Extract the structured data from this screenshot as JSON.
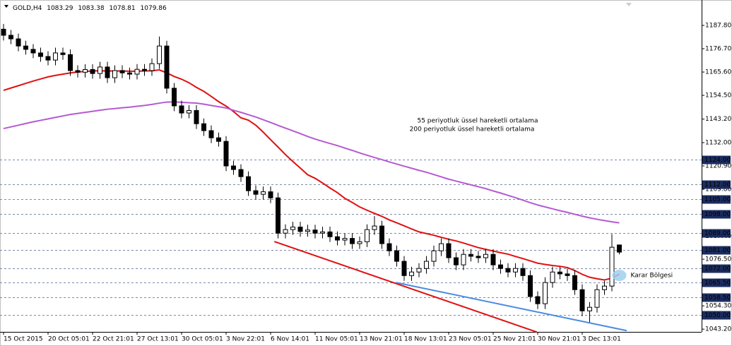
{
  "chart_data": {
    "type": "candlestick",
    "title": "GOLD,H4",
    "categories": [
      "15 Oct 2015",
      null,
      null,
      null,
      null,
      null,
      "20 Oct 05:01",
      null,
      null,
      null,
      null,
      null,
      "22 Oct 21:01",
      null,
      null,
      null,
      null,
      null,
      "27 Oct 13:01",
      null,
      null,
      null,
      null,
      null,
      "30 Oct 05:01",
      null,
      null,
      null,
      null,
      null,
      "3 Nov 22:01",
      null,
      null,
      null,
      null,
      null,
      "6 Nov 14:01",
      null,
      null,
      null,
      null,
      null,
      "11 Nov 05:01",
      null,
      null,
      null,
      null,
      null,
      "13 Nov 21:01",
      null,
      null,
      null,
      null,
      null,
      "18 Nov 13:01",
      null,
      null,
      null,
      null,
      null,
      "23 Nov 05:01",
      null,
      null,
      null,
      null,
      null,
      "25 Nov 21:01",
      null,
      null,
      null,
      null,
      null,
      "30 Nov 21:01",
      null,
      null,
      null,
      null,
      null,
      "3 Dec 13:01",
      null,
      null,
      null,
      null,
      null
    ],
    "open": [
      1186.0,
      1183.1,
      1181.4,
      1178.0,
      1176.4,
      1174.7,
      1173.0,
      1171.3,
      1174.7,
      1173.9,
      1166.3,
      1165.5,
      1166.8,
      1164.9,
      1168.0,
      1162.9,
      1166.3,
      1165.2,
      1164.6,
      1166.9,
      1166.3,
      1169.6,
      1178.0,
      1157.9,
      1149.5,
      1146.1,
      1147.3,
      1141.0,
      1137.7,
      1134.3,
      1132.6,
      1120.9,
      1119.2,
      1115.8,
      1109.1,
      1107.4,
      1108.6,
      1105.7,
      1088.9,
      1090.6,
      1091.8,
      1089.7,
      1090.4,
      1088.9,
      1089.5,
      1087.2,
      1085.6,
      1086.4,
      1083.9,
      1084.8,
      1090.6,
      1092.3,
      1083.9,
      1080.5,
      1075.5,
      1068.7,
      1070.4,
      1072.1,
      1075.5,
      1080.5,
      1083.9,
      1077.2,
      1073.8,
      1078.8,
      1077.9,
      1077.2,
      1078.8,
      1073.8,
      1072.1,
      1070.4,
      1072.1,
      1068.7,
      1058.7,
      1055.3,
      1065.4,
      1070.4,
      1069.5,
      1068.7,
      1062.0,
      1051.9,
      1053.6,
      1062.0,
      1063.7,
      1083.29
    ],
    "high": [
      1188.5,
      1185.6,
      1183.9,
      1180.5,
      1178.9,
      1177.2,
      1175.5,
      1177.2,
      1177.2,
      1176.4,
      1168.8,
      1169.3,
      1169.3,
      1170.5,
      1170.5,
      1168.8,
      1168.8,
      1167.7,
      1169.4,
      1169.4,
      1172.1,
      1182.5,
      1180.5,
      1160.4,
      1152.0,
      1149.8,
      1149.8,
      1143.5,
      1140.2,
      1136.8,
      1135.1,
      1123.4,
      1121.7,
      1118.3,
      1111.6,
      1111.1,
      1111.1,
      1108.2,
      1093.1,
      1094.3,
      1094.3,
      1092.9,
      1092.9,
      1092.0,
      1092.0,
      1089.7,
      1088.9,
      1088.9,
      1087.3,
      1093.1,
      1097.0,
      1094.8,
      1086.4,
      1083.0,
      1078.0,
      1072.9,
      1074.6,
      1078.0,
      1083.0,
      1086.4,
      1086.4,
      1079.7,
      1081.3,
      1081.3,
      1080.4,
      1081.3,
      1081.3,
      1076.3,
      1074.6,
      1074.6,
      1074.6,
      1071.2,
      1061.2,
      1067.9,
      1072.9,
      1072.9,
      1072.0,
      1071.2,
      1064.5,
      1056.1,
      1064.5,
      1066.2,
      1088.5,
      1083.38
    ],
    "low": [
      1180.6,
      1178.9,
      1175.5,
      1173.9,
      1172.2,
      1170.5,
      1168.8,
      1168.8,
      1171.4,
      1163.8,
      1163.0,
      1163.0,
      1162.4,
      1162.4,
      1160.4,
      1160.4,
      1162.7,
      1162.1,
      1162.1,
      1163.8,
      1163.8,
      1167.1,
      1155.4,
      1147.0,
      1143.6,
      1143.6,
      1138.5,
      1135.2,
      1131.8,
      1130.1,
      1118.4,
      1116.7,
      1113.3,
      1106.6,
      1104.9,
      1104.9,
      1103.2,
      1086.4,
      1086.4,
      1088.1,
      1087.2,
      1087.2,
      1086.4,
      1086.4,
      1084.7,
      1083.1,
      1083.1,
      1081.4,
      1081.4,
      1082.3,
      1088.1,
      1081.4,
      1078.0,
      1073.0,
      1066.2,
      1066.2,
      1067.9,
      1069.6,
      1073.0,
      1078.0,
      1074.7,
      1071.3,
      1071.3,
      1075.4,
      1074.7,
      1074.7,
      1071.3,
      1069.6,
      1067.9,
      1067.9,
      1066.2,
      1056.2,
      1052.8,
      1052.8,
      1062.9,
      1067.0,
      1066.2,
      1059.5,
      1049.4,
      1046.3,
      1051.1,
      1059.5,
      1061.2,
      1078.81
    ],
    "close": [
      1183.1,
      1181.4,
      1178.0,
      1176.4,
      1174.7,
      1173.0,
      1171.3,
      1174.7,
      1173.9,
      1166.3,
      1165.5,
      1166.8,
      1164.9,
      1168.0,
      1162.9,
      1166.3,
      1165.2,
      1164.6,
      1166.9,
      1166.3,
      1169.6,
      1178.0,
      1157.9,
      1149.5,
      1146.1,
      1147.3,
      1141.0,
      1137.7,
      1134.3,
      1132.6,
      1120.9,
      1119.2,
      1115.8,
      1109.1,
      1107.4,
      1108.6,
      1105.7,
      1088.9,
      1090.6,
      1091.8,
      1089.7,
      1090.4,
      1088.9,
      1089.5,
      1087.2,
      1085.6,
      1086.4,
      1083.9,
      1084.8,
      1090.6,
      1092.3,
      1083.9,
      1080.5,
      1075.5,
      1068.7,
      1070.4,
      1072.1,
      1075.5,
      1080.5,
      1083.9,
      1077.2,
      1073.8,
      1078.8,
      1077.9,
      1077.2,
      1078.8,
      1073.8,
      1072.1,
      1070.4,
      1072.1,
      1068.7,
      1058.7,
      1055.3,
      1065.4,
      1070.4,
      1069.5,
      1068.7,
      1062.0,
      1051.9,
      1053.6,
      1062.0,
      1063.7,
      1082.2,
      1079.86
    ],
    "bull_color": "#ffffff",
    "bear_color": "#000000",
    "lines": [
      {
        "name": "55 periyotluk üssel hareketli ortalama",
        "color": "#e01010",
        "values": [
          1156.9,
          1158.0,
          1159.1,
          1160.2,
          1161.3,
          1162.3,
          1163.3,
          1164.0,
          1164.6,
          1165.2,
          1165.6,
          1165.9,
          1166.1,
          1166.2,
          1166.1,
          1166.1,
          1166.1,
          1166.0,
          1166.0,
          1166.1,
          1166.2,
          1166.6,
          1165.2,
          1163.5,
          1162.2,
          1160.5,
          1158.3,
          1156.4,
          1154.0,
          1151.5,
          1149.4,
          1146.8,
          1143.8,
          1142.7,
          1140.3,
          1137.0,
          1133.4,
          1129.9,
          1126.3,
          1123.0,
          1119.9,
          1116.7,
          1115.0,
          1112.8,
          1110.4,
          1108.2,
          1105.5,
          1103.5,
          1101.4,
          1099.8,
          1098.3,
          1096.9,
          1095.2,
          1093.8,
          1092.4,
          1090.9,
          1089.5,
          1088.7,
          1087.9,
          1086.9,
          1086.0,
          1085.2,
          1084.2,
          1083.1,
          1082.0,
          1081.2,
          1080.4,
          1079.6,
          1078.9,
          1077.8,
          1076.8,
          1075.7,
          1074.6,
          1074.0,
          1073.5,
          1073.1,
          1072.5,
          1071.1,
          1069.3,
          1067.9,
          1067.2,
          1066.6,
          1067.5,
          1069.4
        ]
      },
      {
        "name": "200 periyotluk üssel hareketli ortalama",
        "color": "#b45ad2",
        "values": [
          1138.7,
          1139.5,
          1140.3,
          1141.1,
          1141.9,
          1142.6,
          1143.3,
          1144.0,
          1144.7,
          1145.4,
          1145.9,
          1146.4,
          1146.9,
          1147.4,
          1147.9,
          1148.2,
          1148.6,
          1148.9,
          1149.3,
          1149.7,
          1150.2,
          1150.8,
          1151.3,
          1151.4,
          1151.2,
          1151.0,
          1150.8,
          1150.3,
          1149.7,
          1149.1,
          1148.5,
          1147.4,
          1146.4,
          1145.3,
          1144.2,
          1142.9,
          1141.6,
          1140.2,
          1138.9,
          1137.6,
          1136.3,
          1134.9,
          1133.7,
          1132.6,
          1131.6,
          1130.6,
          1129.4,
          1128.3,
          1127.1,
          1126.0,
          1124.9,
          1123.9,
          1122.8,
          1121.8,
          1120.8,
          1119.8,
          1118.8,
          1117.9,
          1116.8,
          1115.7,
          1114.6,
          1113.7,
          1112.8,
          1111.9,
          1111.0,
          1110.1,
          1109.0,
          1108.0,
          1106.9,
          1105.8,
          1104.6,
          1103.4,
          1102.3,
          1101.4,
          1100.5,
          1099.6,
          1098.8,
          1097.9,
          1097.0,
          1096.2,
          1095.5,
          1094.9,
          1094.3,
          1093.8
        ]
      }
    ],
    "trendlines": [
      {
        "color": "#e01010",
        "x": [
          36.5,
          71.9
        ],
        "values": [
          1084.9,
          1041.8
        ]
      },
      {
        "color": "#4a8ae0",
        "x": [
          52.9,
          84.0
        ],
        "values": [
          1065.4,
          1042.5
        ]
      }
    ],
    "levels": [
      {
        "value": 1124,
        "label": "1124.00"
      },
      {
        "value": 1112,
        "label": "1112.00"
      },
      {
        "value": 1105,
        "label": "1105.00"
      },
      {
        "value": 1098,
        "label": "1098.00"
      },
      {
        "value": 1089,
        "label": "1089.00"
      },
      {
        "value": 1081,
        "label": "1081.00"
      },
      {
        "value": 1072,
        "label": "1072.00"
      },
      {
        "value": 1065.5,
        "label": "1065.50"
      },
      {
        "value": 1058.5,
        "label": "1058.50"
      },
      {
        "value": 1050,
        "label": "1050.00"
      }
    ],
    "zone": {
      "x": 83,
      "value": 1068.8,
      "label": "Karar Bölgesi",
      "color": "#9fcfef"
    },
    "ylim": [
      1041.9,
      1199.9
    ],
    "yticks": [
      {
        "value": 1187.8,
        "label": "1187.80"
      },
      {
        "value": 1176.7,
        "label": "1176.70"
      },
      {
        "value": 1165.6,
        "label": "1165.60"
      },
      {
        "value": 1154.5,
        "label": "1154.50"
      },
      {
        "value": 1143.2,
        "label": "1143.20"
      },
      {
        "value": 1132,
        "label": "1132.00"
      },
      {
        "value": 1120.9,
        "label": "1120.90"
      },
      {
        "value": 1109.8,
        "label": "1109.80"
      },
      {
        "value": 1087.4,
        "label": "1087.40"
      },
      {
        "value": 1076.5,
        "label": "1076.50"
      },
      {
        "value": 1054.3,
        "label": "1054.30"
      },
      {
        "value": 1043.2,
        "label": "1043.20"
      }
    ]
  }
}
